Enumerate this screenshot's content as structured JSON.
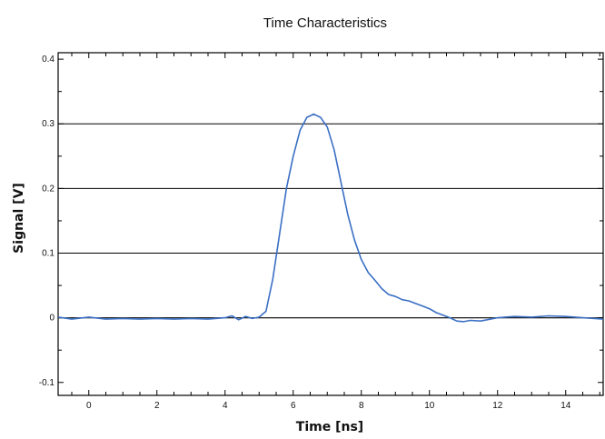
{
  "chart_data": {
    "type": "line",
    "title": "Time Characteristics",
    "xlabel": "Time [ns]",
    "ylabel": "Signal [V]",
    "xlim": [
      -0.9,
      15.1
    ],
    "ylim": [
      -0.12,
      0.41
    ],
    "x_ticks": [
      0,
      2,
      4,
      6,
      8,
      10,
      12,
      14
    ],
    "y_ticks": [
      -0.1,
      0,
      0.1,
      0.2,
      0.3,
      0.4
    ],
    "x_tick_labels": [
      "0",
      "2",
      "4",
      "6",
      "8",
      "10",
      "12",
      "14"
    ],
    "y_tick_labels": [
      "-0.1",
      "0",
      "0.1",
      "0.2",
      "0.3",
      "0.4"
    ],
    "grid": {
      "horizontal_lines_at": [
        0,
        0.1,
        0.2,
        0.3
      ]
    },
    "series": [
      {
        "color": "#3a6fc4",
        "x": [
          -0.9,
          -0.5,
          0,
          0.5,
          1,
          1.5,
          2,
          2.5,
          3,
          3.5,
          4,
          4.2,
          4.4,
          4.6,
          4.8,
          5,
          5.2,
          5.4,
          5.6,
          5.8,
          6,
          6.2,
          6.4,
          6.6,
          6.8,
          7,
          7.2,
          7.4,
          7.6,
          7.8,
          8,
          8.2,
          8.4,
          8.6,
          8.8,
          9,
          9.2,
          9.4,
          9.6,
          9.8,
          10,
          10.2,
          10.4,
          10.6,
          10.8,
          11,
          11.2,
          11.5,
          12,
          12.5,
          13,
          13.5,
          14,
          14.5,
          15.1
        ],
        "y": [
          0.001,
          -0.002,
          0.001,
          -0.002,
          -0.001,
          -0.002,
          -0.001,
          -0.002,
          -0.001,
          -0.002,
          0.0,
          0.003,
          -0.003,
          0.002,
          -0.001,
          0.001,
          0.01,
          0.06,
          0.13,
          0.2,
          0.25,
          0.29,
          0.31,
          0.315,
          0.31,
          0.295,
          0.26,
          0.21,
          0.16,
          0.12,
          0.09,
          0.07,
          0.058,
          0.045,
          0.036,
          0.033,
          0.028,
          0.026,
          0.022,
          0.018,
          0.014,
          0.008,
          0.004,
          0.0,
          -0.005,
          -0.006,
          -0.004,
          -0.005,
          0.0,
          0.002,
          0.001,
          0.003,
          0.002,
          0.0,
          -0.002
        ]
      }
    ]
  }
}
